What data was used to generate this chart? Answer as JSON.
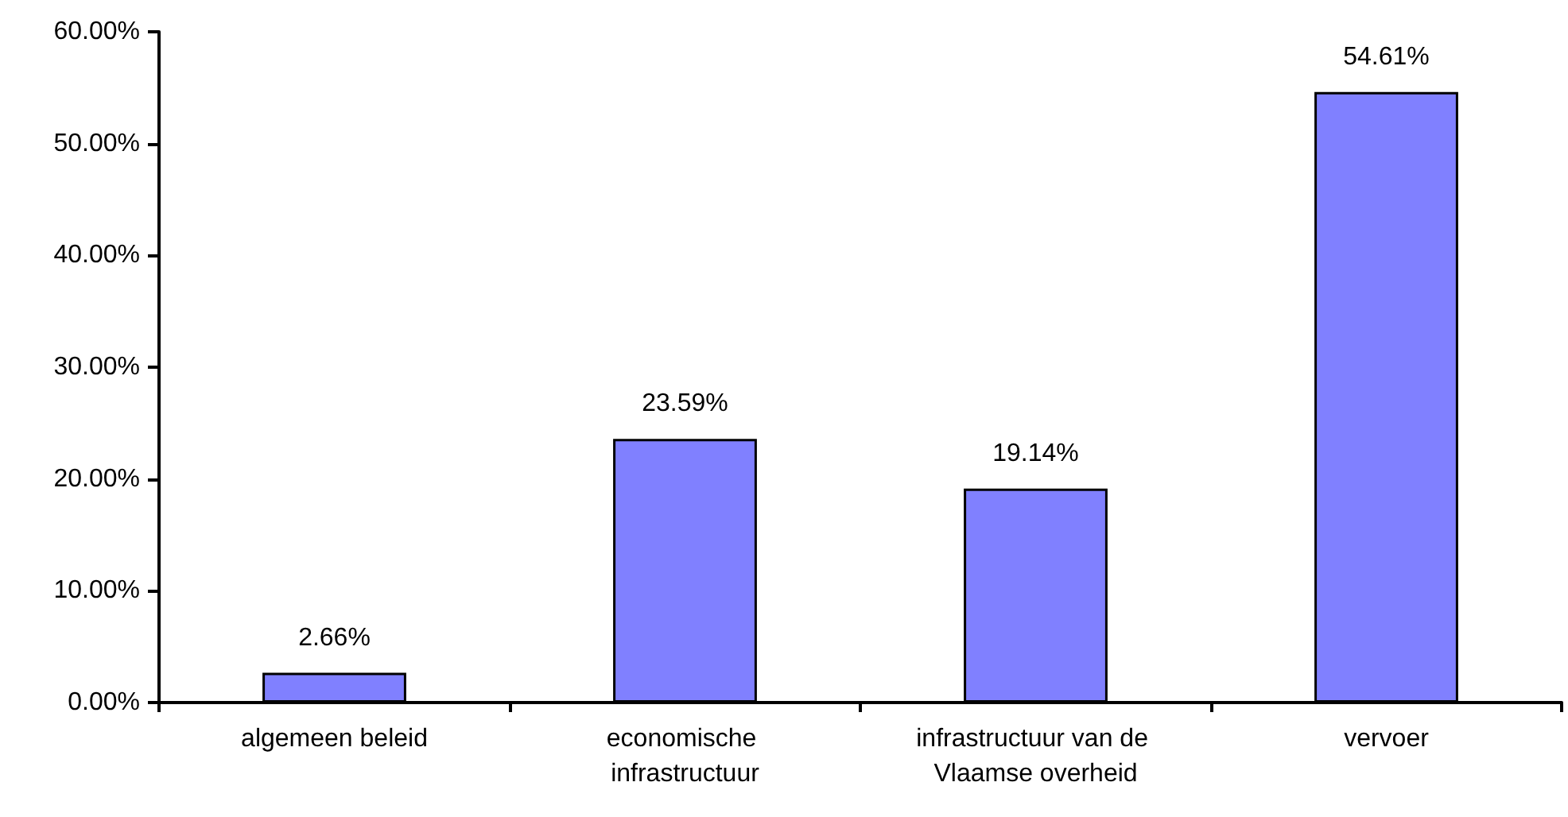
{
  "chart_data": {
    "type": "bar",
    "categories": [
      "algemeen beleid",
      "economische infrastructuur",
      "infrastructuur van de Vlaamse overheid",
      "vervoer"
    ],
    "values": [
      2.66,
      23.59,
      19.14,
      54.61
    ],
    "color": "#8080ff",
    "value_labels": [
      "2.66%",
      "23.59%",
      "19.14%",
      "54.61%"
    ],
    "ylim": [
      0,
      60
    ],
    "yticks": [
      {
        "value": 0,
        "label": "0.00%"
      },
      {
        "value": 10,
        "label": "10.00%"
      },
      {
        "value": 20,
        "label": "20.00%"
      },
      {
        "value": 30,
        "label": "30.00%"
      },
      {
        "value": 40,
        "label": "40.00%"
      },
      {
        "value": 50,
        "label": "50.00%"
      },
      {
        "value": 60,
        "label": "60.00%"
      }
    ],
    "grid": false
  }
}
